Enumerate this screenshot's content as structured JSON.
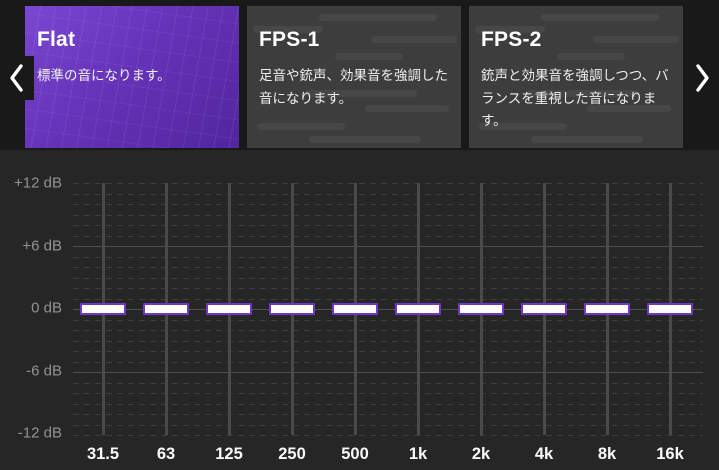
{
  "colors": {
    "accent_purple": "#6533b8",
    "handle_border": "#7137c8",
    "handle_fill": "#ffffff",
    "card_background": "#3d3d3d",
    "carousel_background": "#191919",
    "page_background": "#262626"
  },
  "carousel": {
    "presets": [
      {
        "title": "Flat",
        "description": "標準の音になります。",
        "selected": true
      },
      {
        "title": "FPS-1",
        "description": "足音や銃声、効果音を強調した音になります。",
        "selected": false
      },
      {
        "title": "FPS-2",
        "description": "銃声と効果音を強調しつつ、バランスを重視した音になります。",
        "selected": false
      }
    ]
  },
  "equalizer": {
    "y_axis_labels": [
      "+12 dB",
      "+6 dB",
      "0 dB",
      "-6 dB",
      "-12 dB"
    ],
    "y_range_db": [
      -12,
      12
    ],
    "bands": [
      {
        "freq": "31.5",
        "gain_db": 0
      },
      {
        "freq": "63",
        "gain_db": 0
      },
      {
        "freq": "125",
        "gain_db": 0
      },
      {
        "freq": "250",
        "gain_db": 0
      },
      {
        "freq": "500",
        "gain_db": 0
      },
      {
        "freq": "1k",
        "gain_db": 0
      },
      {
        "freq": "2k",
        "gain_db": 0
      },
      {
        "freq": "4k",
        "gain_db": 0
      },
      {
        "freq": "8k",
        "gain_db": 0
      },
      {
        "freq": "16k",
        "gain_db": 0
      }
    ]
  }
}
